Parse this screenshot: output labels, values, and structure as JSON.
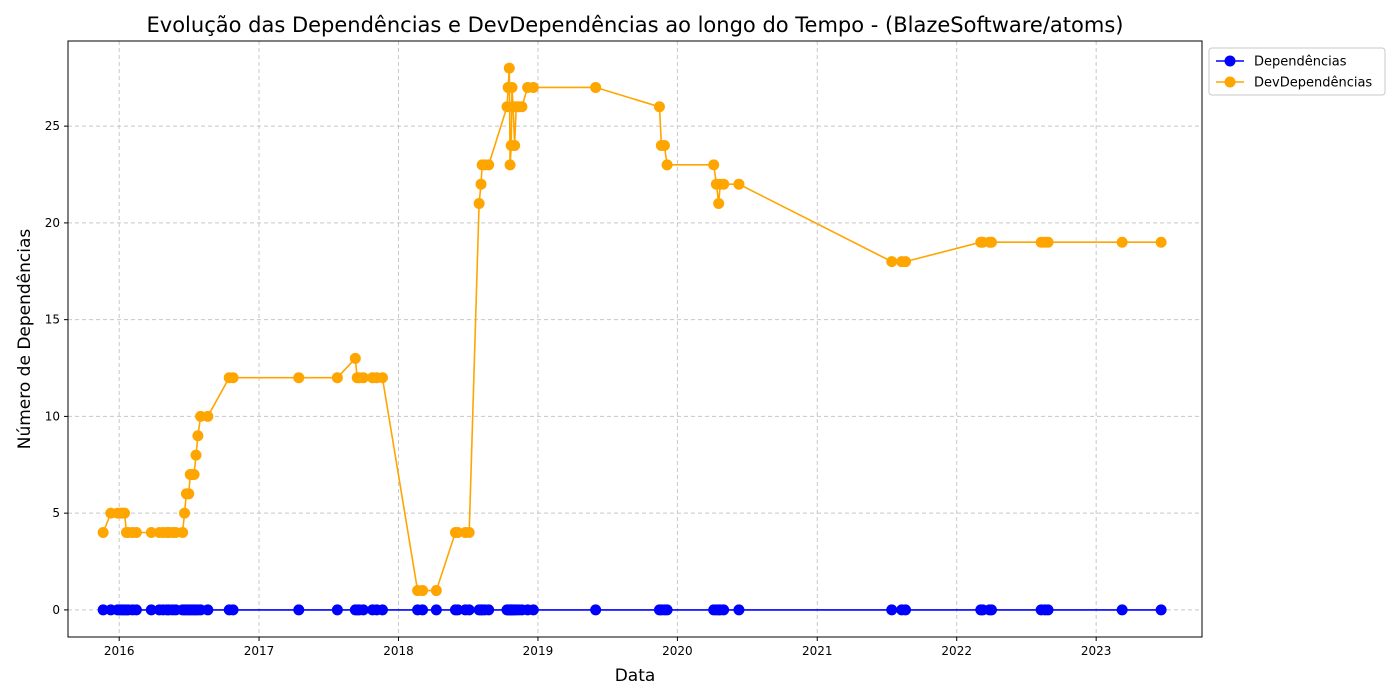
{
  "chart_data": {
    "type": "line",
    "title": "Evolução das Dependências e DevDependências ao longo do Tempo - (BlazeSoftware/atoms)",
    "xlabel": "Data",
    "ylabel": "Número de Dependências",
    "x_ticks": [
      "2016",
      "2017",
      "2018",
      "2019",
      "2020",
      "2021",
      "2022",
      "2023"
    ],
    "y_ticks": [
      0,
      5,
      10,
      15,
      20,
      25
    ],
    "xlim": [
      "2015-08-20",
      "2023-10-05"
    ],
    "ylim": [
      -1.4,
      29.4
    ],
    "grid": true,
    "legend_position": "outside top-right",
    "x": [
      "2015-11-20",
      "2015-12-10",
      "2015-12-28",
      "2016-01-05",
      "2016-01-10",
      "2016-01-15",
      "2016-01-20",
      "2016-01-25",
      "2016-02-05",
      "2016-02-15",
      "2016-03-25",
      "2016-04-15",
      "2016-04-25",
      "2016-05-05",
      "2016-05-10",
      "2016-05-20",
      "2016-05-28",
      "2016-06-15",
      "2016-06-20",
      "2016-06-25",
      "2016-07-01",
      "2016-07-05",
      "2016-07-10",
      "2016-07-15",
      "2016-07-20",
      "2016-07-25",
      "2016-08-01",
      "2016-08-20",
      "2016-10-15",
      "2016-10-25",
      "2017-04-15",
      "2017-07-25",
      "2017-09-10",
      "2017-09-15",
      "2017-09-20",
      "2017-10-01",
      "2017-10-25",
      "2017-11-05",
      "2017-11-20",
      "2018-02-20",
      "2018-03-05",
      "2018-04-10",
      "2018-05-30",
      "2018-06-05",
      "2018-06-25",
      "2018-07-05",
      "2018-07-31",
      "2018-08-05",
      "2018-08-08",
      "2018-08-15",
      "2018-08-25",
      "2018-10-12",
      "2018-10-15",
      "2018-10-18",
      "2018-10-20",
      "2018-10-23",
      "2018-10-25",
      "2018-10-28",
      "2018-11-01",
      "2018-11-05",
      "2018-11-12",
      "2018-11-20",
      "2018-12-05",
      "2018-12-20",
      "2019-06-01",
      "2019-11-15",
      "2019-11-20",
      "2019-11-28",
      "2019-12-05",
      "2020-04-05",
      "2020-04-12",
      "2020-04-18",
      "2020-04-22",
      "2020-05-01",
      "2020-06-10",
      "2021-07-15",
      "2021-08-10",
      "2021-08-20",
      "2022-03-05",
      "2022-03-10",
      "2022-03-28",
      "2022-04-02",
      "2022-08-10",
      "2022-08-20",
      "2022-08-28",
      "2023-03-10",
      "2023-06-20"
    ],
    "series": [
      {
        "name": "Dependências",
        "color": "#0000ff",
        "values": [
          0,
          0,
          0,
          0,
          0,
          0,
          0,
          0,
          0,
          0,
          0,
          0,
          0,
          0,
          0,
          0,
          0,
          0,
          0,
          0,
          0,
          0,
          0,
          0,
          0,
          0,
          0,
          0,
          0,
          0,
          0,
          0,
          0,
          0,
          0,
          0,
          0,
          0,
          0,
          0,
          0,
          0,
          0,
          0,
          0,
          0,
          0,
          0,
          0,
          0,
          0,
          0,
          0,
          0,
          0,
          0,
          0,
          0,
          0,
          0,
          0,
          0,
          0,
          0,
          0,
          0,
          0,
          0,
          0,
          0,
          0,
          0,
          0,
          0,
          0,
          0,
          0,
          0,
          0,
          0,
          0,
          0,
          0,
          0,
          0,
          0,
          0
        ]
      },
      {
        "name": "DevDependências",
        "color": "#ffa500",
        "values": [
          4,
          5,
          5,
          5,
          5,
          5,
          4,
          4,
          4,
          4,
          4,
          4,
          4,
          4,
          4,
          4,
          4,
          4,
          5,
          6,
          6,
          7,
          7,
          7,
          8,
          9,
          10,
          10,
          12,
          12,
          12,
          12,
          13,
          12,
          12,
          12,
          12,
          12,
          12,
          1,
          1,
          1,
          4,
          4,
          4,
          4,
          21,
          22,
          23,
          23,
          23,
          26,
          27,
          28,
          23,
          24,
          27,
          26,
          24,
          26,
          26,
          26,
          27,
          27,
          27,
          26,
          24,
          24,
          23,
          23,
          22,
          21,
          22,
          22,
          22,
          18,
          18,
          18,
          19,
          19,
          19,
          19,
          19,
          19,
          19,
          19,
          19
        ]
      }
    ]
  }
}
